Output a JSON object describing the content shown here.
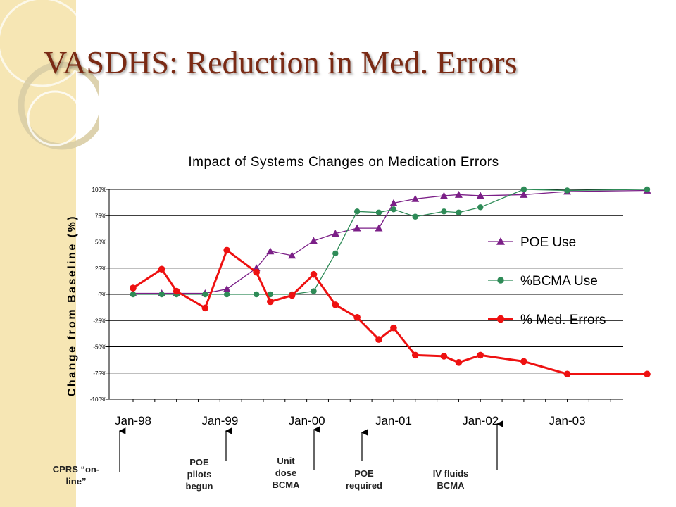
{
  "slide": {
    "title": "VASDHS: Reduction in Med. Errors"
  },
  "chart_data": {
    "type": "line",
    "title": "Impact of Systems Changes on Medication Errors",
    "ylabel": "Change from Baseline (%)",
    "xlabel": "",
    "ylim": [
      -100,
      100
    ],
    "y_ticks": [
      100,
      75,
      50,
      25,
      0,
      -25,
      -50,
      -75,
      -100
    ],
    "y_tick_labels": [
      "100%",
      "75%",
      "50%",
      "25%",
      "0%",
      "-25%",
      "-50%",
      "-75%",
      "-100%"
    ],
    "x_range": [
      1998.0,
      2003.92
    ],
    "x_ticks": [
      1998.0,
      1999.0,
      2000.0,
      2001.0,
      2002.0,
      2003.0
    ],
    "x_tick_labels": [
      "Jan-98",
      "Jan-99",
      "Jan-00",
      "Jan-01",
      "Jan-02",
      "Jan-03"
    ],
    "grid": "horizontal",
    "legend_position": "right",
    "series": [
      {
        "name": "POE Use",
        "color": "#7b1f87",
        "marker": "triangle",
        "x": [
          1998.0,
          1998.33,
          1998.5,
          1998.83,
          1999.08,
          1999.42,
          1999.58,
          1999.83,
          2000.08,
          2000.33,
          2000.58,
          2000.83,
          2001.0,
          2001.25,
          2001.58,
          2001.75,
          2002.0,
          2002.5,
          2003.0,
          2003.92
        ],
        "y": [
          1,
          1,
          1,
          1,
          5,
          25,
          41,
          37,
          51,
          58,
          63,
          63,
          87,
          91,
          94,
          95,
          94,
          95,
          98,
          99
        ]
      },
      {
        "name": "%BCMA Use",
        "color": "#2e8b57",
        "marker": "circle",
        "x": [
          1998.0,
          1998.33,
          1998.5,
          1998.83,
          1999.08,
          1999.42,
          1999.58,
          1999.83,
          2000.08,
          2000.33,
          2000.58,
          2000.83,
          2001.0,
          2001.25,
          2001.58,
          2001.75,
          2002.0,
          2002.5,
          2003.0,
          2003.92
        ],
        "y": [
          0,
          0,
          0,
          0,
          0,
          0,
          0,
          0,
          3,
          39,
          79,
          78,
          81,
          74,
          79,
          78,
          83,
          100,
          99,
          100
        ]
      },
      {
        "name": "% Med. Errors",
        "color": "#ee1111",
        "marker": "circle",
        "x": [
          1998.0,
          1998.33,
          1998.5,
          1998.83,
          1999.08,
          1999.42,
          1999.58,
          1999.83,
          2000.08,
          2000.33,
          2000.58,
          2000.83,
          2001.0,
          2001.25,
          2001.58,
          2001.75,
          2002.0,
          2002.5,
          2003.0,
          2003.92
        ],
        "y": [
          6,
          24,
          3,
          -13,
          42,
          21,
          -7,
          -1,
          19,
          -10,
          -22,
          -43,
          -32,
          -58,
          -59,
          -65,
          -58,
          -64,
          -76,
          -76
        ]
      }
    ],
    "annotations": [
      {
        "text": "CPRS “on-line”",
        "lines": [
          "CPRS “on-",
          "line”"
        ],
        "x": 1998.0
      },
      {
        "text": "POE pilots begun",
        "lines": [
          "POE",
          "pilots",
          "begun"
        ],
        "x": 1999.25
      },
      {
        "text": "Unit dose BCMA",
        "lines": [
          "Unit",
          "dose",
          "BCMA"
        ],
        "x": 2000.25
      },
      {
        "text": "POE required",
        "lines": [
          "POE",
          "required"
        ],
        "x": 2001.0
      },
      {
        "text": "IV fluids BCMA",
        "lines": [
          "IV fluids",
          "BCMA"
        ],
        "x": 2002.5
      }
    ]
  }
}
